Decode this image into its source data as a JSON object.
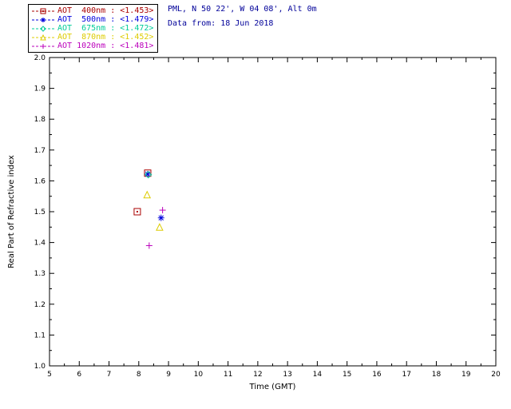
{
  "header": {
    "station": "PML, N 50 22', W 04 08', Alt 0m",
    "date": "Data from: 18 Jun 2018",
    "text_color": "#000099"
  },
  "chart_data": {
    "type": "scatter",
    "title": "",
    "xlabel": "Time (GMT)",
    "ylabel": "Real Part of Refractive index",
    "xlim": [
      5,
      20
    ],
    "ylim": [
      1.0,
      2.0
    ],
    "x_tick_step": 1,
    "y_tick_step": 0.1,
    "grid": false,
    "legend_position": "top-left-above-plot",
    "axis_color": "#000000",
    "series": [
      {
        "id": "aot-400nm",
        "label": "AOT  400nm : <1.453>",
        "mean_value": 1.453,
        "color": "#aa0000",
        "marker": "square-dot",
        "points": [
          [
            7.95,
            1.5
          ],
          [
            8.3,
            1.625
          ]
        ]
      },
      {
        "id": "aot-500nm",
        "label": "AOT  500nm : <1.479>",
        "mean_value": 1.479,
        "color": "#0000dd",
        "marker": "asterisk",
        "points": [
          [
            8.3,
            1.622
          ],
          [
            8.75,
            1.48
          ]
        ]
      },
      {
        "id": "aot-675nm",
        "label": "AOT  675nm : <1.472>",
        "mean_value": 1.472,
        "color": "#00cc99",
        "marker": "diamond",
        "points": [
          [
            8.32,
            1.62
          ]
        ]
      },
      {
        "id": "aot-870nm",
        "label": "AOT  870nm : <1.452>",
        "mean_value": 1.452,
        "color": "#ddcc00",
        "marker": "triangle",
        "points": [
          [
            8.28,
            1.555
          ],
          [
            8.7,
            1.45
          ]
        ]
      },
      {
        "id": "aot-1020nm",
        "label": "AOT 1020nm : <1.481>",
        "mean_value": 1.481,
        "color": "#bb00bb",
        "marker": "plus",
        "points": [
          [
            8.35,
            1.39
          ],
          [
            8.8,
            1.505
          ]
        ]
      }
    ]
  }
}
